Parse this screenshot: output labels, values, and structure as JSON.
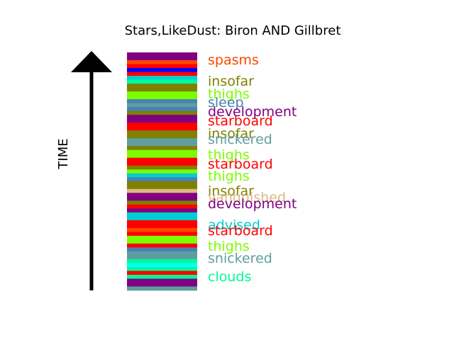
{
  "chart_data": {
    "type": "bar",
    "title": "Stars,LikeDust: Biron AND Gillbret",
    "ylabel": "TIME",
    "stripes": [
      {
        "color": "#800080"
      },
      {
        "color": "#800080"
      },
      {
        "color": "#ff4500"
      },
      {
        "color": "#ff0000"
      },
      {
        "color": "#0000ff"
      },
      {
        "color": "#ff0000"
      },
      {
        "color": "#00ced1"
      },
      {
        "color": "#00fa9a"
      },
      {
        "color": "#808000"
      },
      {
        "color": "#808000"
      },
      {
        "color": "#7cfc00"
      },
      {
        "color": "#7cfc00"
      },
      {
        "color": "#4682b4"
      },
      {
        "color": "#5f9ea0"
      },
      {
        "color": "#4682b4"
      },
      {
        "color": "#808000"
      },
      {
        "color": "#800080"
      },
      {
        "color": "#800080"
      },
      {
        "color": "#ff0000"
      },
      {
        "color": "#ff0000"
      },
      {
        "color": "#808000"
      },
      {
        "color": "#808000"
      },
      {
        "color": "#5f9ea0"
      },
      {
        "color": "#5f9ea0"
      },
      {
        "color": "#808000"
      },
      {
        "color": "#7cfc00"
      },
      {
        "color": "#7cfc00"
      },
      {
        "color": "#ff0000"
      },
      {
        "color": "#ff0000"
      },
      {
        "color": "#808000"
      },
      {
        "color": "#7cfc00"
      },
      {
        "color": "#00ced1"
      },
      {
        "color": "#4682b4"
      },
      {
        "color": "#808000"
      },
      {
        "color": "#808000"
      },
      {
        "color": "#deb887"
      },
      {
        "color": "#800080"
      },
      {
        "color": "#800080"
      },
      {
        "color": "#808000"
      },
      {
        "color": "#ff0000"
      },
      {
        "color": "#800080"
      },
      {
        "color": "#00ced1"
      },
      {
        "color": "#00ced1"
      },
      {
        "color": "#ff0000"
      },
      {
        "color": "#ff0000"
      },
      {
        "color": "#ff4500"
      },
      {
        "color": "#ff0000"
      },
      {
        "color": "#7cfc00"
      },
      {
        "color": "#7cfc00"
      },
      {
        "color": "#ff0000"
      },
      {
        "color": "#4682b4"
      },
      {
        "color": "#5f9ea0"
      },
      {
        "color": "#5f9ea0"
      },
      {
        "color": "#00fa9a"
      },
      {
        "color": "#00ffff"
      },
      {
        "color": "#00fa9a"
      },
      {
        "color": "#ff0000"
      },
      {
        "color": "#00fa9a"
      },
      {
        "color": "#800080"
      },
      {
        "color": "#800080"
      },
      {
        "color": "#5f9ea0"
      }
    ],
    "labels": [
      {
        "text": "spasms",
        "color": "#ff4500"
      },
      {
        "text": "insofar",
        "color": "#808000"
      },
      {
        "text": "thighs",
        "color": "#7cfc00"
      },
      {
        "text": "sleep",
        "color": "#4682b4"
      },
      {
        "text": "development",
        "color": "#800080"
      },
      {
        "text": "starboard",
        "color": "#ff0000"
      },
      {
        "text": "insofar",
        "color": "#808000"
      },
      {
        "text": "snickered",
        "color": "#5f9ea0"
      },
      {
        "text": "thighs",
        "color": "#7cfc00"
      },
      {
        "text": "starboard",
        "color": "#ff0000"
      },
      {
        "text": "thighs",
        "color": "#7cfc00"
      },
      {
        "text": "insofar",
        "color": "#808000"
      },
      {
        "text": "vanquished",
        "color": "#deb887"
      },
      {
        "text": "development",
        "color": "#800080"
      },
      {
        "text": "advised",
        "color": "#00ced1"
      },
      {
        "text": "starboard",
        "color": "#ff0000"
      },
      {
        "text": "thighs",
        "color": "#7cfc00"
      },
      {
        "text": "snickered",
        "color": "#5f9ea0"
      },
      {
        "text": "clouds",
        "color": "#00fa9a"
      }
    ]
  }
}
